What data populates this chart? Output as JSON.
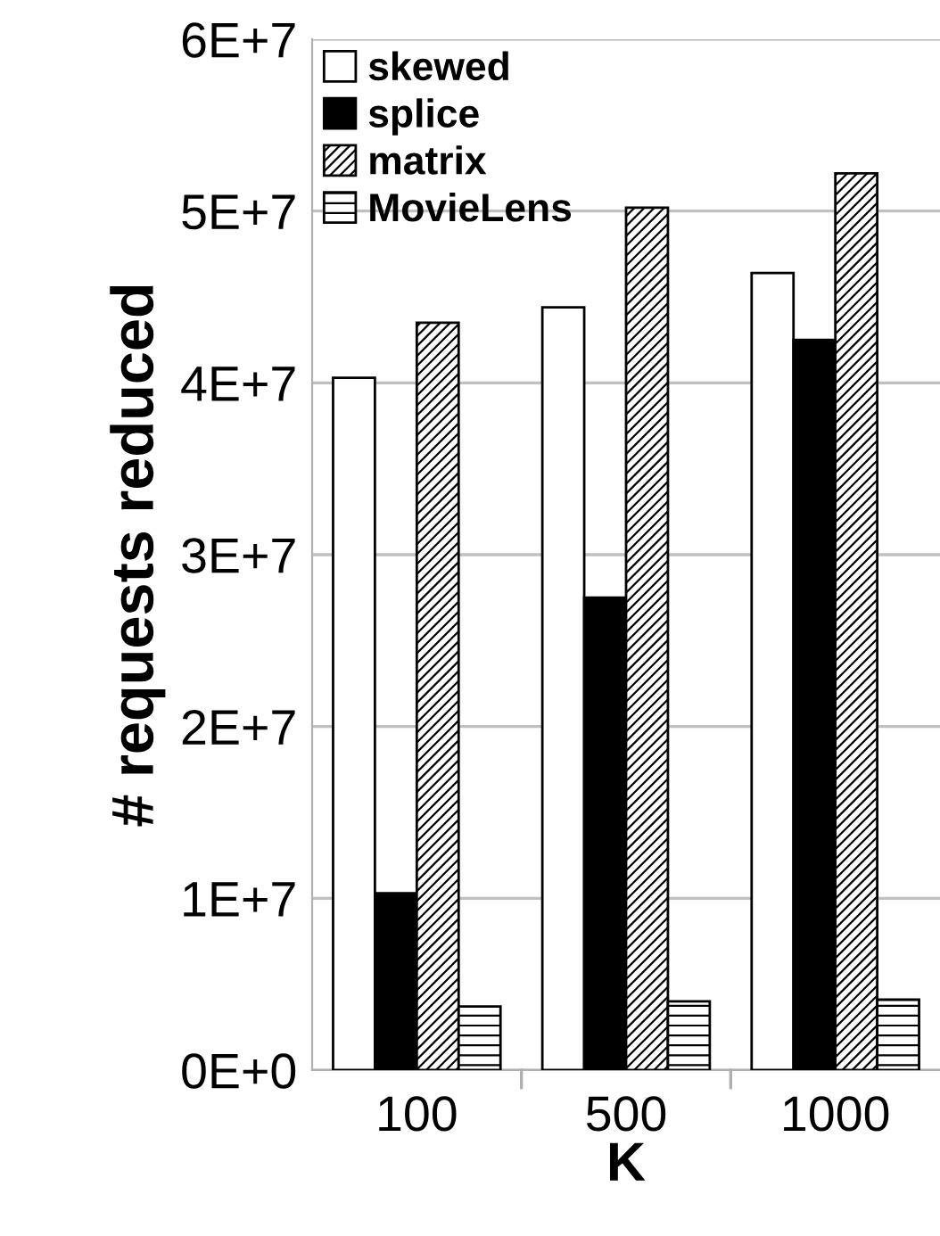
{
  "chart_data": {
    "type": "bar",
    "xlabel": "K",
    "ylabel": "# requests reduced",
    "categories": [
      "100",
      "500",
      "1000"
    ],
    "series": [
      {
        "name": "skewed",
        "color": "#ffffff",
        "values": [
          40300000,
          44400000,
          46400000
        ]
      },
      {
        "name": "splice",
        "color": "#000000",
        "values": [
          10300000,
          27500000,
          42500000
        ]
      },
      {
        "name": "matrix",
        "color": "#000000",
        "values": [
          43500000,
          50200000,
          52200000
        ]
      },
      {
        "name": "MovieLens",
        "color": "#000000",
        "values": [
          3700000,
          4000000,
          4100000
        ]
      }
    ],
    "ylim": [
      0,
      60000000
    ],
    "yticks": [
      {
        "value": 0,
        "label": "0E+0"
      },
      {
        "value": 10000000,
        "label": "1E+7"
      },
      {
        "value": 20000000,
        "label": "2E+7"
      },
      {
        "value": 30000000,
        "label": "3E+7"
      },
      {
        "value": 40000000,
        "label": "4E+7"
      },
      {
        "value": 50000000,
        "label": "5E+7"
      },
      {
        "value": 60000000,
        "label": "6E+7"
      }
    ],
    "grid": "y",
    "legend": "top left"
  }
}
